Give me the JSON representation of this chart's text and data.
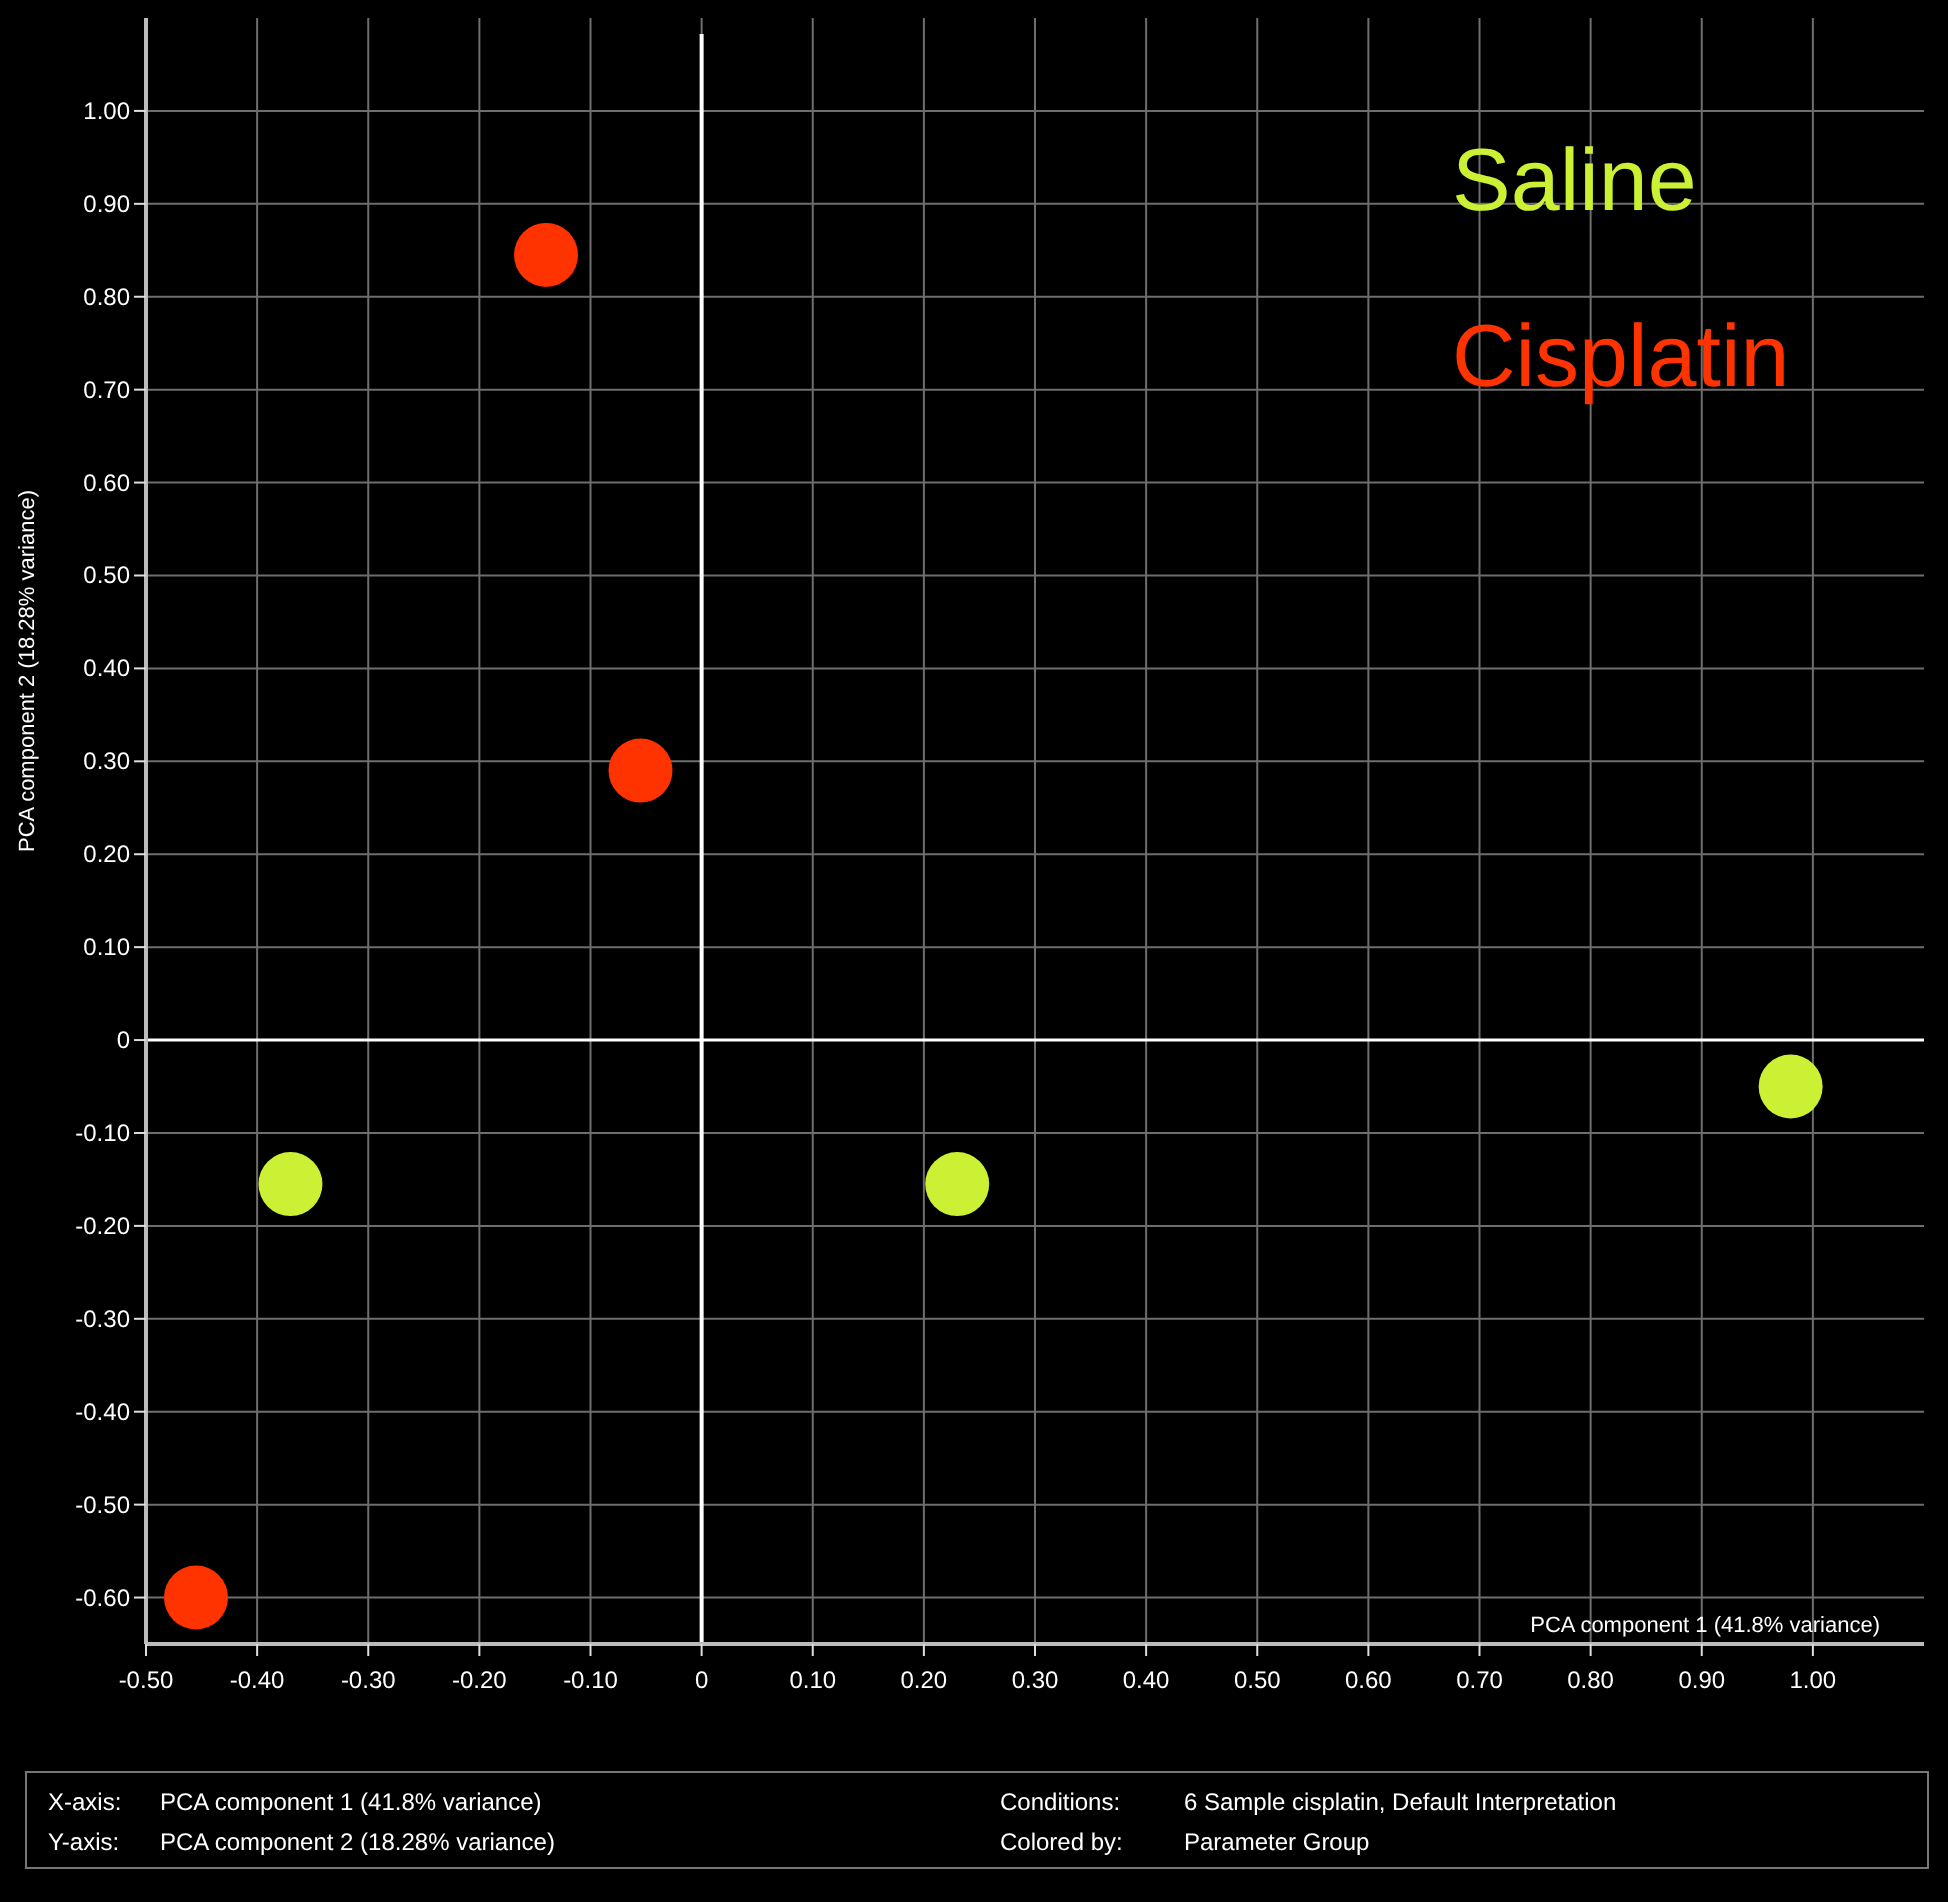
{
  "chart_data": {
    "type": "scatter",
    "xlabel": "PCA component 1 (41.8% variance)",
    "ylabel": "PCA component 2 (18.28% variance)",
    "series": [
      {
        "name": "Saline",
        "color": "#ccf033",
        "x": [
          -0.37,
          0.23,
          0.98
        ],
        "values": [
          -0.155,
          -0.155,
          -0.05
        ]
      },
      {
        "name": "Cisplatin",
        "color": "#ff3300",
        "x": [
          -0.14,
          -0.055,
          -0.455
        ],
        "values": [
          0.845,
          0.29,
          -0.6
        ]
      }
    ],
    "xlim": [
      -0.5,
      1.1
    ],
    "ylim": [
      -0.65,
      1.1
    ],
    "xticks": [
      {
        "value": -0.5,
        "label": "-0.50"
      },
      {
        "value": -0.4,
        "label": "-0.40"
      },
      {
        "value": -0.3,
        "label": "-0.30"
      },
      {
        "value": -0.2,
        "label": "-0.20"
      },
      {
        "value": -0.1,
        "label": "-0.10"
      },
      0,
      {
        "value": 0.1,
        "label": "0.10"
      },
      {
        "value": 0.2,
        "label": "0.20"
      },
      {
        "value": 0.3,
        "label": "0.30"
      },
      {
        "value": 0.4,
        "label": "0.40"
      },
      {
        "value": 0.5,
        "label": "0.50"
      },
      {
        "value": 0.6,
        "label": "0.60"
      },
      {
        "value": 0.7,
        "label": "0.70"
      },
      {
        "value": 0.8,
        "label": "0.80"
      },
      {
        "value": 0.9,
        "label": "0.90"
      },
      {
        "value": 1.0,
        "label": "1.00"
      }
    ],
    "yticks": [
      {
        "value": -0.6,
        "label": "-0.60"
      },
      {
        "value": -0.5,
        "label": "-0.50"
      },
      {
        "value": -0.4,
        "label": "-0.40"
      },
      {
        "value": -0.3,
        "label": "-0.30"
      },
      {
        "value": -0.2,
        "label": "-0.20"
      },
      {
        "value": -0.1,
        "label": "-0.10"
      },
      0,
      {
        "value": 0.1,
        "label": "0.10"
      },
      {
        "value": 0.2,
        "label": "0.20"
      },
      {
        "value": 0.3,
        "label": "0.30"
      },
      {
        "value": 0.4,
        "label": "0.40"
      },
      {
        "value": 0.5,
        "label": "0.50"
      },
      {
        "value": 0.6,
        "label": "0.60"
      },
      {
        "value": 0.7,
        "label": "0.70"
      },
      {
        "value": 0.8,
        "label": "0.80"
      },
      {
        "value": 0.9,
        "label": "0.90"
      },
      {
        "value": 1.0,
        "label": "1.00"
      }
    ],
    "grid": true,
    "legend": "top right",
    "marker": "circle",
    "annotations": [
      "X-axis:",
      "PCA component 1 (41.8% variance)",
      "Conditions:",
      "6 Sample cisplatin, Default Interpretation",
      "Y-axis:",
      "PCA component 2 (18.28% variance)",
      "Colored by:",
      "Parameter Group"
    ]
  }
}
